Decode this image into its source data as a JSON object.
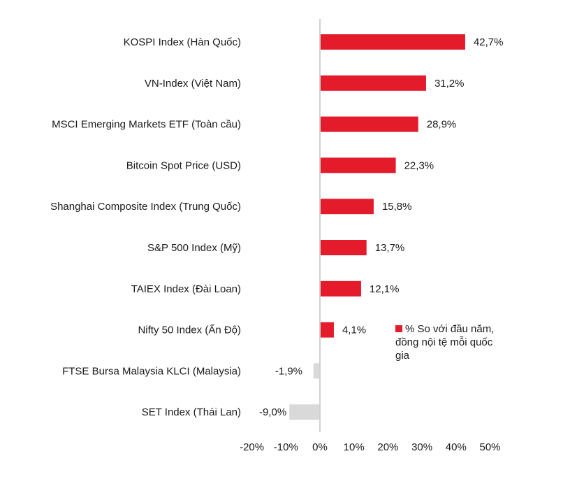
{
  "chart_data": {
    "type": "bar",
    "orientation": "horizontal",
    "categories": [
      "KOSPI Index (Hàn Quốc)",
      "VN-Index (Việt Nam)",
      "MSCI Emerging Markets ETF (Toàn cầu)",
      "Bitcoin Spot Price (USD)",
      "Shanghai Composite Index (Trung Quốc)",
      "S&P 500 Index (Mỹ)",
      "TAIEX Index (Đài Loan)",
      "Nifty 50 Index (Ấn Độ)",
      "FTSE Bursa Malaysia KLCI (Malaysia)",
      "SET Index (Thái Lan)"
    ],
    "values": [
      42.7,
      31.2,
      28.9,
      22.3,
      15.8,
      13.7,
      12.1,
      4.1,
      -1.9,
      -9.0
    ],
    "value_labels": [
      "42,7%",
      "31,2%",
      "28,9%",
      "22,3%",
      "15,8%",
      "13,7%",
      "12,1%",
      "4,1%",
      "-1,9%",
      "-9,0%"
    ],
    "xlim": [
      -20,
      50
    ],
    "xticks": [
      -20,
      -10,
      0,
      10,
      20,
      30,
      40,
      50
    ],
    "xtick_labels": [
      "-20%",
      "-10%",
      "0%",
      "10%",
      "20%",
      "30%",
      "40%",
      "50%"
    ],
    "legend": {
      "label": "% So với đầu năm, đồng nội tệ mỗi quốc gia",
      "position": "center-right"
    },
    "colors": {
      "positive": "#e31b2b",
      "negative": "#d9d9d9",
      "axis": "#d0d0d0"
    },
    "grid": false
  }
}
